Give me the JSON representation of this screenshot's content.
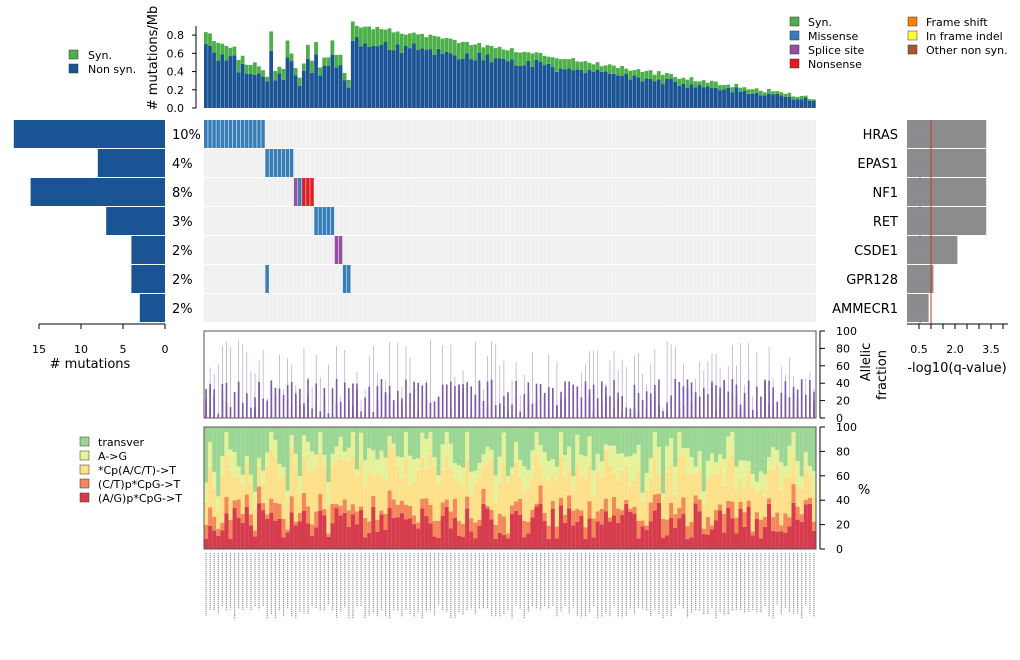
{
  "chart_data": [
    {
      "type": "bar",
      "name": "mutation-rate",
      "ylabel": "# mutations/Mb",
      "ylim": [
        0,
        0.9
      ],
      "yticks": [
        "0.0",
        "0.2",
        "0.4",
        "0.6",
        "0.8"
      ],
      "legend": [
        "Syn.",
        "Non syn."
      ],
      "sample_count": 150
    },
    {
      "type": "heatmap",
      "name": "mutation-matrix",
      "genes": [
        "HRAS",
        "EPAS1",
        "NF1",
        "RET",
        "CSDE1",
        "GPR128",
        "AMMECR1"
      ],
      "percent": [
        "10%",
        "4%",
        "8%",
        "3%",
        "2%",
        "2%",
        "2%"
      ],
      "legend": [
        "Syn.",
        "Missense",
        "Splice site",
        "Nonsense",
        "Frame shift",
        "In frame indel",
        "Other non syn."
      ],
      "mutated_samples": [
        {
          "gene": "HRAS",
          "samples": [
            [
              0,
              15,
              "Missense"
            ]
          ]
        },
        {
          "gene": "EPAS1",
          "samples": [
            [
              15,
              22,
              "Missense"
            ]
          ]
        },
        {
          "gene": "NF1",
          "samples": [
            [
              22,
              23,
              "Splice site"
            ],
            [
              23,
              24,
              "Missense"
            ],
            [
              24,
              27,
              "Nonsense"
            ]
          ]
        },
        {
          "gene": "RET",
          "samples": [
            [
              27,
              32,
              "Missense"
            ]
          ]
        },
        {
          "gene": "CSDE1",
          "samples": [
            [
              32,
              34,
              "Splice site"
            ]
          ]
        },
        {
          "gene": "GPR128",
          "samples": [
            [
              15,
              16,
              "Missense"
            ],
            [
              34,
              36,
              "Missense"
            ]
          ]
        },
        {
          "gene": "AMMECR1",
          "samples": []
        }
      ]
    },
    {
      "type": "bar",
      "name": "mutation-count",
      "xlabel": "# mutations",
      "xticks": [
        "15",
        "10",
        "5",
        "0"
      ],
      "values": [
        18,
        8,
        16,
        7,
        4,
        4,
        3
      ]
    },
    {
      "type": "bar",
      "name": "q-value",
      "xlabel": "-log10(q-value)",
      "xticks": [
        "0.5",
        "2.0",
        "3.5"
      ],
      "values": [
        3.3,
        3.3,
        3.3,
        3.3,
        2.1,
        1.1,
        0.9
      ],
      "thresholds": [
        0.5,
        1.0
      ]
    },
    {
      "type": "scatter",
      "name": "allelic-fraction",
      "ylabel": "Allelic\nfraction",
      "ylim": [
        0,
        100
      ],
      "yticks": [
        "0",
        "20",
        "40",
        "60",
        "80",
        "100"
      ]
    },
    {
      "type": "bar",
      "name": "mutation-spectrum",
      "ylabel": "%",
      "ylim": [
        0,
        100
      ],
      "yticks": [
        "0",
        "20",
        "40",
        "60",
        "80",
        "100"
      ],
      "legend": [
        "transver",
        "A->G",
        "*Cp(A/C/T)->T",
        "(C/T)p*CpG->T",
        "(A/G)p*CpG->T"
      ]
    }
  ],
  "colors": {
    "syn": "#4daf4a",
    "non_syn": "#1a5494",
    "missense": "#377eb8",
    "splice": "#984ea3",
    "nonsense": "#e41a1c",
    "frameshift": "#ff7f00",
    "inframe": "#ffff33",
    "other": "#a65628",
    "bg": "#f0f0f0",
    "grey_bar": "#8c8c8c",
    "transver": "#9cd694",
    "ag": "#e6f29b",
    "cpact": "#fde08a",
    "ctcpg": "#f3885a",
    "agcpg": "#d63c4d",
    "af": "#7a5aa6",
    "af_light": "#b4a3d0"
  }
}
